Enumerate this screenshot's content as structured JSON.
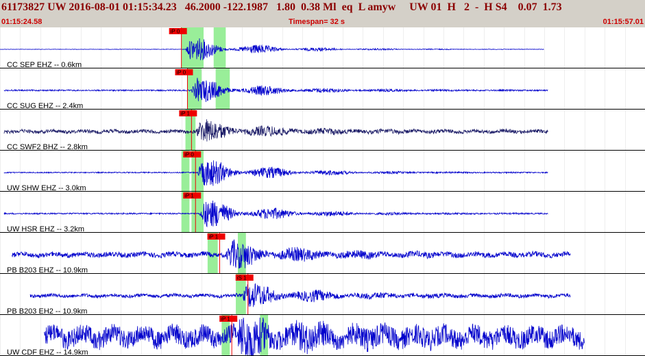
{
  "header": {
    "title": "61173827 UW 2016-08-01 01:15:34.23   46.2000 -122.1987   1.80  0.38 Ml  eq  L amyw     UW 01  H   2  -  H S4    0.07  1.73",
    "start_time": "01:15:24.58",
    "timespan": "Timespan=  32 s",
    "end_time": "01:15:57.01"
  },
  "colors": {
    "header_bg": "#d4d0c8",
    "header_text": "#8b0000",
    "time_text": "#cc0000",
    "trace_blue": "#0000cc",
    "trace_dark": "#1a1a66",
    "pick_red": "#ee0000",
    "window_green": "#99ee99"
  },
  "axis": {
    "start_s": 0,
    "span_s": 32
  },
  "channels": [
    {
      "label": "CC SEP EHZ -- 0.6km",
      "picks": [
        {
          "text": "iP 0",
          "t": 9.0
        }
      ],
      "windows": [
        [
          9.0,
          10.1
        ],
        [
          10.6,
          11.2
        ]
      ],
      "onset": 9.2,
      "trace_start": 0.0,
      "trace_end": 27.0,
      "amp": 20,
      "noise": 0.3,
      "dark": false
    },
    {
      "label": "CC SUG EHZ -- 2.4km",
      "picks": [
        {
          "text": "iP 0",
          "t": 9.3
        }
      ],
      "windows": [
        [
          9.3,
          10.0
        ],
        [
          10.7,
          11.4
        ]
      ],
      "onset": 9.5,
      "trace_start": 0.2,
      "trace_end": 27.2,
      "amp": 20,
      "noise": 1.0,
      "dark": false
    },
    {
      "label": "CC SWF2 BHZ -- 2.8km",
      "picks": [
        {
          "text": "iP 1",
          "t": 9.5
        }
      ],
      "windows": [
        [
          9.2,
          9.7
        ]
      ],
      "onset": 9.7,
      "trace_start": 0.2,
      "trace_end": 27.2,
      "amp": 18,
      "noise": 2.5,
      "dark": true
    },
    {
      "label": "UW SHW EHZ -- 3.0km",
      "picks": [
        {
          "text": "iP 0",
          "t": 9.7
        }
      ],
      "windows": [
        [
          9.0,
          9.4
        ],
        [
          9.5,
          10.1
        ]
      ],
      "onset": 9.8,
      "trace_start": 0.2,
      "trace_end": 27.2,
      "amp": 24,
      "noise": 0.8,
      "dark": false
    },
    {
      "label": "UW HSR EHZ -- 3.2km",
      "picks": [
        {
          "text": "iP 1",
          "t": 9.7
        }
      ],
      "windows": [
        [
          9.0,
          9.4
        ],
        [
          9.5,
          10.1
        ]
      ],
      "onset": 9.9,
      "trace_start": 0.2,
      "trace_end": 27.2,
      "amp": 24,
      "noise": 1.0,
      "dark": false
    },
    {
      "label": "PB B203 EHZ -- 10.9km",
      "picks": [
        {
          "text": "iP 1",
          "t": 10.9
        }
      ],
      "windows": [
        [
          10.3,
          10.8
        ],
        [
          11.8,
          12.2
        ]
      ],
      "onset": 11.2,
      "trace_start": 0.6,
      "trace_end": 28.3,
      "amp": 22,
      "noise": 3.5,
      "dark": false
    },
    {
      "label": "PB B203 EH2 -- 10.9km",
      "picks": [
        {
          "text": "iS 1",
          "t": 12.3
        }
      ],
      "windows": [
        [
          11.7,
          12.2
        ]
      ],
      "onset": 12.0,
      "trace_start": 1.5,
      "trace_end": 28.3,
      "amp": 20,
      "noise": 2.5,
      "dark": false
    },
    {
      "label": "UW CDF EHZ -- 14.9km",
      "picks": [
        {
          "text": "iP 1",
          "t": 11.5
        }
      ],
      "windows": [
        [
          11.0,
          11.4
        ],
        [
          12.9,
          13.3
        ]
      ],
      "onset": 11.7,
      "trace_start": 2.2,
      "trace_end": 29.0,
      "amp": 26,
      "noise": 14,
      "dark": false
    }
  ]
}
